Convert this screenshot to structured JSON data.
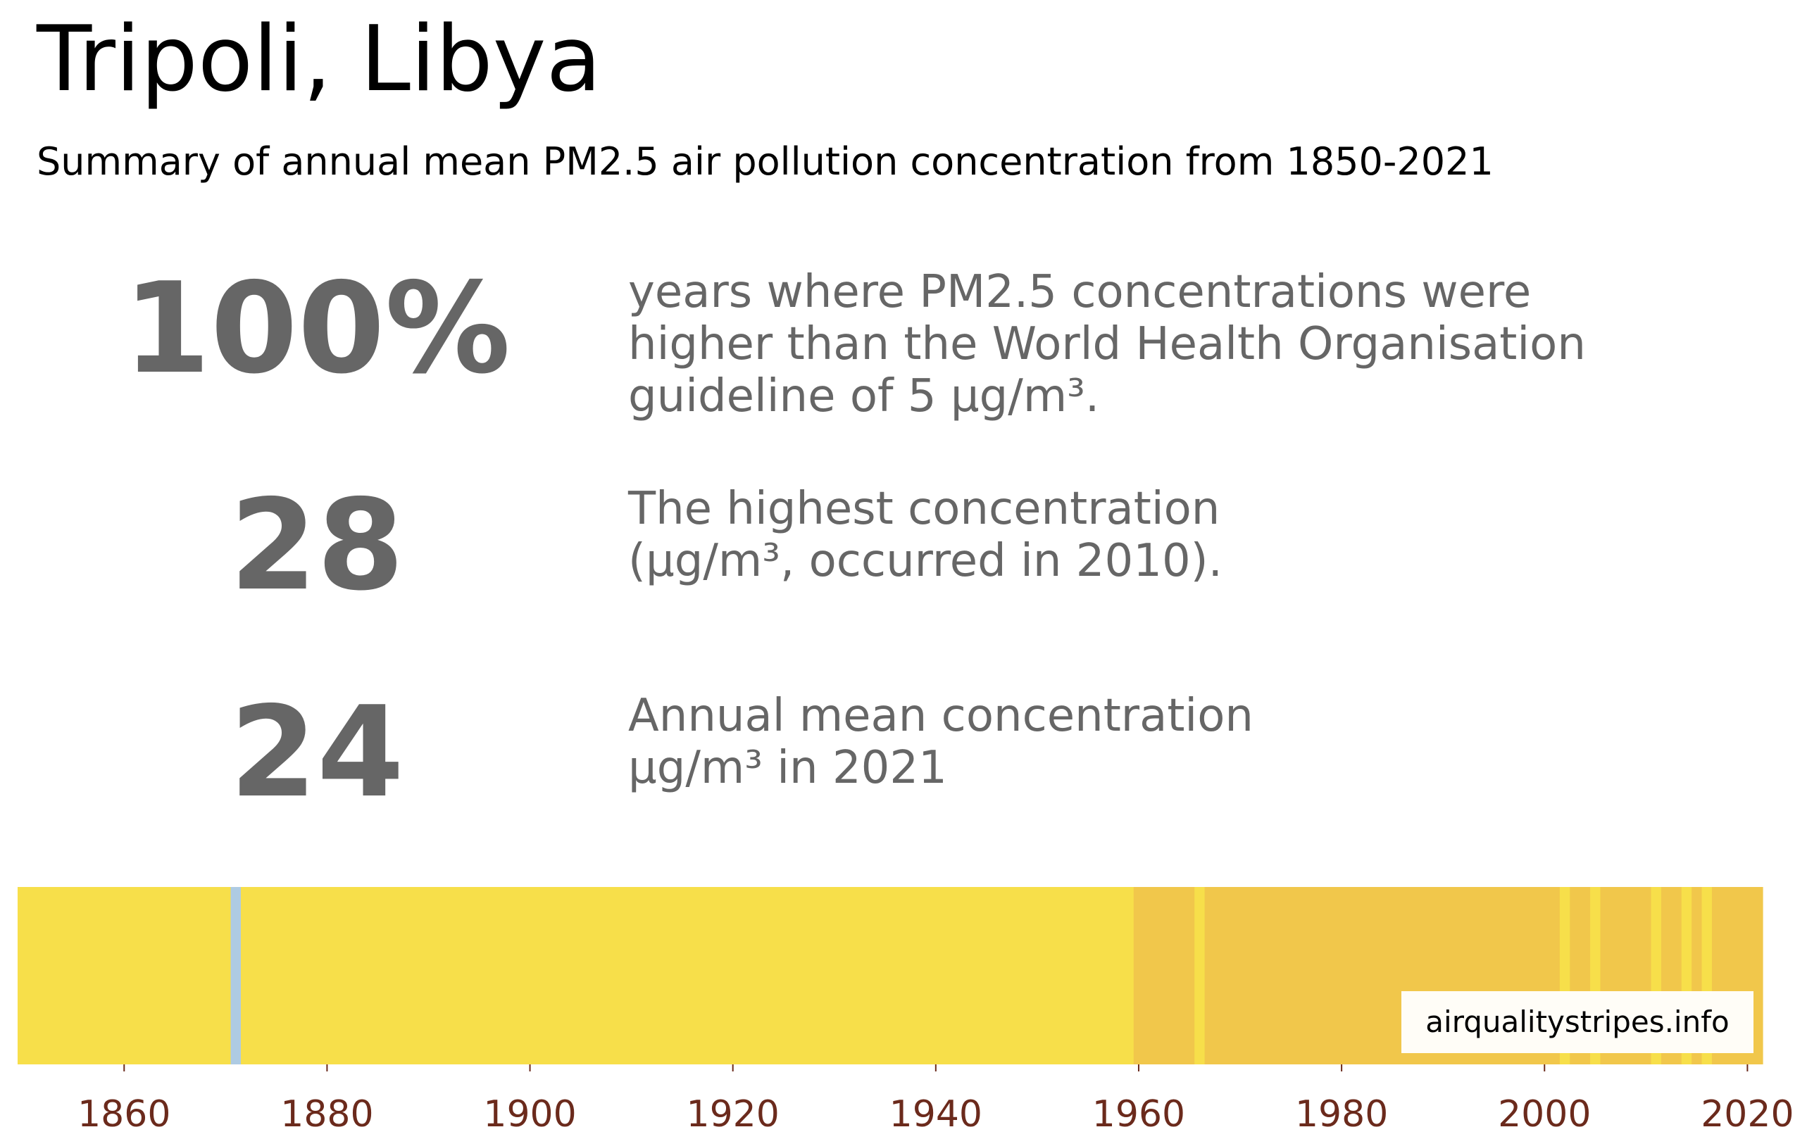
{
  "title": "Tripoli, Libya",
  "subtitle": "Summary of annual mean PM2.5 air pollution concentration from 1850-2021",
  "stats": [
    {
      "value": "100%",
      "text": "years where PM2.5 concentrations were\nhigher than the World Health Organisation\nguideline of 5 μg/m³."
    },
    {
      "value": "28",
      "text": "The highest concentration\n(μg/m³, occurred in 2010)."
    },
    {
      "value": "24",
      "text": "Annual mean concentration\nμg/m³ in 2021"
    }
  ],
  "credit": "airqualitystripes.info",
  "colors": {
    "stat_text": "#666666",
    "tick_text": "#6b2a1c",
    "low": "#aecbe3",
    "mid": "#f7df4a",
    "high": "#f1c74b"
  },
  "chart_data": {
    "type": "heatmap",
    "x_range": [
      1850,
      2021
    ],
    "ticks": [
      "1860",
      "1880",
      "1900",
      "1920",
      "1940",
      "1960",
      "1980",
      "2000",
      "2020"
    ],
    "tick_values": [
      1860,
      1880,
      1900,
      1920,
      1940,
      1960,
      1980,
      2000,
      2020
    ],
    "bands": [
      {
        "from": 1850,
        "to": 1871,
        "color": "#f7df4a"
      },
      {
        "from": 1871,
        "to": 1872,
        "color": "#aecbe3"
      },
      {
        "from": 1872,
        "to": 1960,
        "color": "#f7df4a"
      },
      {
        "from": 1960,
        "to": 1966,
        "color": "#f1c74b"
      },
      {
        "from": 1966,
        "to": 1967,
        "color": "#f7df4a"
      },
      {
        "from": 1967,
        "to": 2002,
        "color": "#f1c74b"
      },
      {
        "from": 2002,
        "to": 2003,
        "color": "#f7df4a"
      },
      {
        "from": 2003,
        "to": 2005,
        "color": "#f1c74b"
      },
      {
        "from": 2005,
        "to": 2006,
        "color": "#f7df4a"
      },
      {
        "from": 2006,
        "to": 2011,
        "color": "#f1c74b"
      },
      {
        "from": 2011,
        "to": 2012,
        "color": "#f7df4a"
      },
      {
        "from": 2012,
        "to": 2014,
        "color": "#f1c74b"
      },
      {
        "from": 2014,
        "to": 2015,
        "color": "#f7df4a"
      },
      {
        "from": 2015,
        "to": 2016,
        "color": "#f1c74b"
      },
      {
        "from": 2016,
        "to": 2017,
        "color": "#f7df4a"
      },
      {
        "from": 2017,
        "to": 2022,
        "color": "#f1c74b"
      }
    ]
  }
}
